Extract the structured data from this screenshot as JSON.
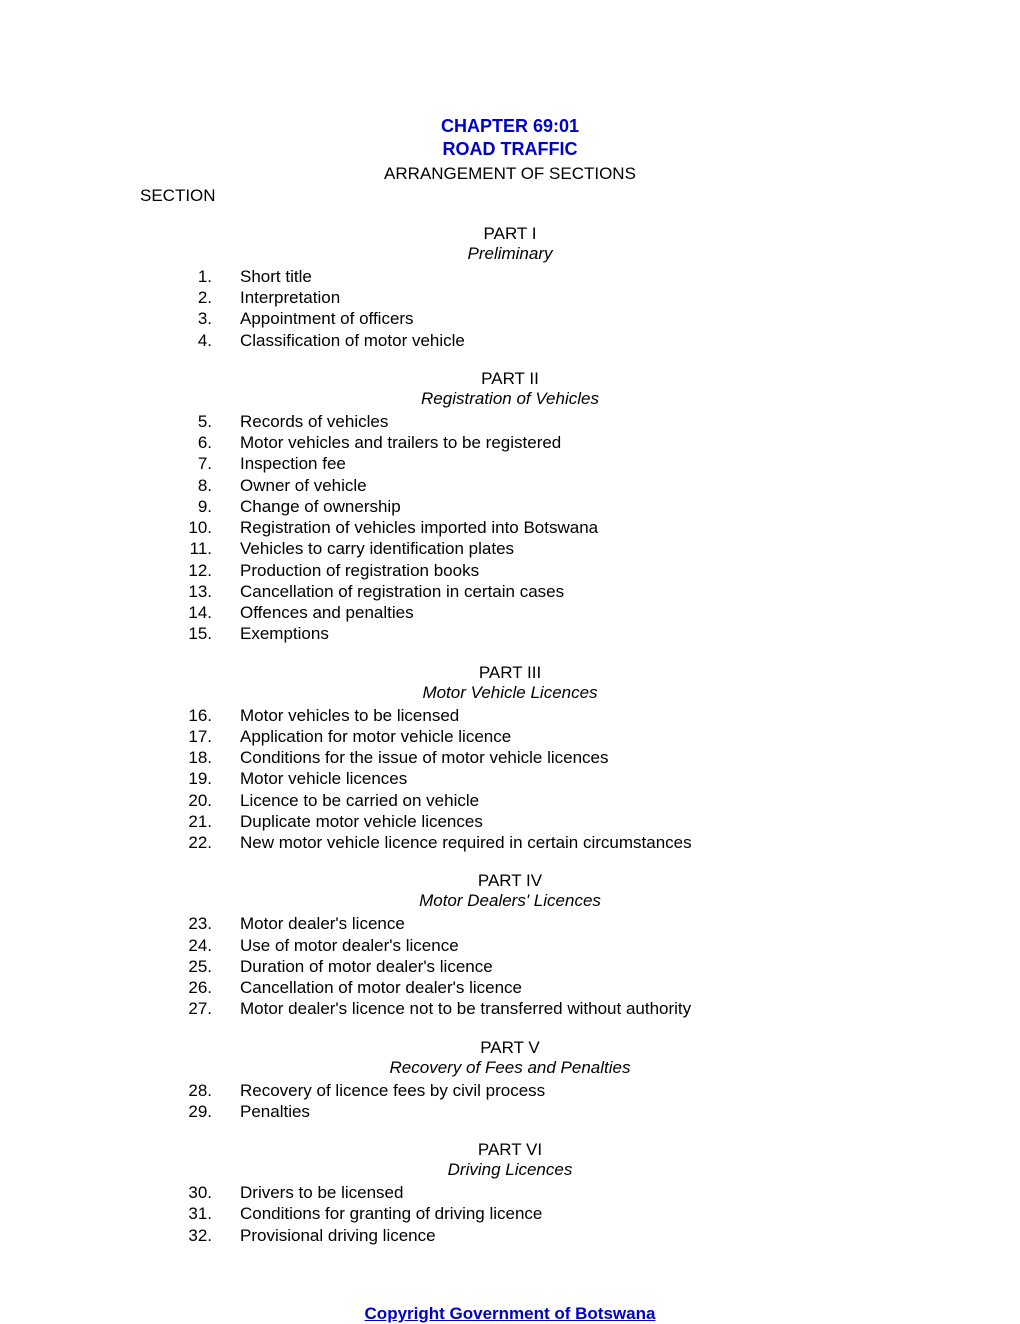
{
  "header": {
    "chapter": "CHAPTER 69:01",
    "title": "ROAD TRAFFIC",
    "arrangement": "ARRANGEMENT OF SECTIONS",
    "sectionLabel": "SECTION"
  },
  "parts": [
    {
      "label": "PART I",
      "subtitle": "Preliminary",
      "items": [
        {
          "num": "1.",
          "text": "Short title"
        },
        {
          "num": "2.",
          "text": "Interpretation"
        },
        {
          "num": "3.",
          "text": "Appointment of officers"
        },
        {
          "num": "4.",
          "text": "Classification of motor vehicle"
        }
      ]
    },
    {
      "label": "PART II",
      "subtitle": "Registration of Vehicles",
      "items": [
        {
          "num": "5.",
          "text": "Records of vehicles"
        },
        {
          "num": "6.",
          "text": "Motor vehicles and trailers to be registered"
        },
        {
          "num": "7.",
          "text": "Inspection fee"
        },
        {
          "num": "8.",
          "text": "Owner of vehicle"
        },
        {
          "num": "9.",
          "text": "Change of ownership"
        },
        {
          "num": "10.",
          "text": "Registration of vehicles imported into Botswana"
        },
        {
          "num": "11.",
          "text": "Vehicles to carry identification plates"
        },
        {
          "num": "12.",
          "text": "Production of registration books"
        },
        {
          "num": "13.",
          "text": "Cancellation of registration in certain cases"
        },
        {
          "num": "14.",
          "text": "Offences and penalties"
        },
        {
          "num": "15.",
          "text": "Exemptions"
        }
      ]
    },
    {
      "label": "PART III",
      "subtitle": "Motor Vehicle Licences",
      "items": [
        {
          "num": "16.",
          "text": "Motor vehicles to be licensed"
        },
        {
          "num": "17.",
          "text": "Application for motor vehicle licence"
        },
        {
          "num": "18.",
          "text": "Conditions for the issue of motor vehicle licences"
        },
        {
          "num": "19.",
          "text": "Motor vehicle licences"
        },
        {
          "num": "20.",
          "text": "Licence to be carried on vehicle"
        },
        {
          "num": "21.",
          "text": "Duplicate motor vehicle licences"
        },
        {
          "num": "22.",
          "text": "New motor vehicle licence required in certain circumstances"
        }
      ]
    },
    {
      "label": "PART IV",
      "subtitle": "Motor Dealers' Licences",
      "items": [
        {
          "num": "23.",
          "text": "Motor dealer's licence"
        },
        {
          "num": "24.",
          "text": "Use of motor dealer's licence"
        },
        {
          "num": "25.",
          "text": "Duration of motor dealer's licence"
        },
        {
          "num": "26.",
          "text": "Cancellation of motor dealer's licence"
        },
        {
          "num": "27.",
          "text": "Motor dealer's licence not to be transferred without authority"
        }
      ]
    },
    {
      "label": "PART V",
      "subtitle": "Recovery of Fees and Penalties",
      "items": [
        {
          "num": "28.",
          "text": "Recovery of licence fees by civil process"
        },
        {
          "num": "29.",
          "text": "Penalties"
        }
      ]
    },
    {
      "label": "PART VI",
      "subtitle": "Driving Licences",
      "items": [
        {
          "num": "30.",
          "text": "Drivers to be licensed"
        },
        {
          "num": "31.",
          "text": "Conditions for granting of driving licence"
        },
        {
          "num": "32.",
          "text": "Provisional driving licence"
        }
      ]
    }
  ],
  "footer": {
    "copyright": "Copyright Government of Botswana"
  },
  "styles": {
    "accentColor": "#0000cc",
    "textColor": "#000000",
    "backgroundColor": "#ffffff",
    "baseFontSize": 17,
    "titleFontSize": 18
  }
}
